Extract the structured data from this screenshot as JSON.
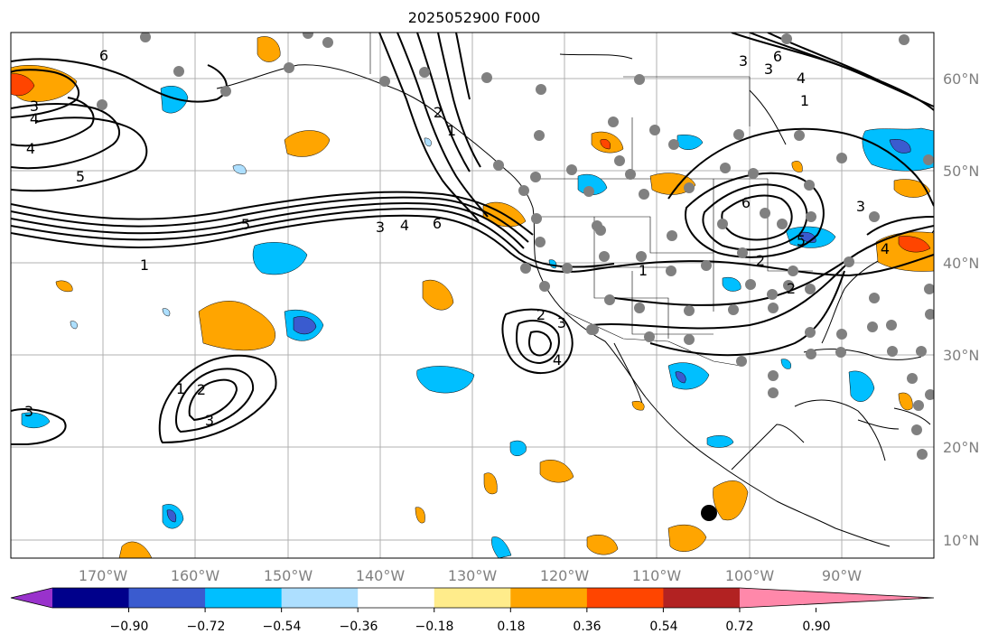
{
  "title": "2025052900 F000",
  "lon_labels": [
    "170°W",
    "160°W",
    "150°W",
    "140°W",
    "130°W",
    "120°W",
    "110°W",
    "100°W",
    "90°W"
  ],
  "lat_labels": [
    "60°N",
    "50°N",
    "40°N",
    "30°N",
    "20°N",
    "10°N"
  ],
  "colorbar": {
    "colors": [
      "#9932CC",
      "#00008B",
      "#3A5BCF",
      "#00BFFF",
      "#ADDFFF",
      "#FFFFFF",
      "#FFEC8B",
      "#FFA500",
      "#FF4500",
      "#B22222",
      "#FF88AA"
    ],
    "ticks": [
      "−0.90",
      "−0.72",
      "−0.54",
      "−0.36",
      "−0.18",
      "0.18",
      "0.36",
      "0.54",
      "0.72",
      "0.90"
    ]
  },
  "contour_labels": [
    "6",
    "3",
    "4",
    "4",
    "5",
    "5",
    "3",
    "4",
    "6",
    "1",
    "1",
    "2",
    "3",
    "3",
    "2",
    "3",
    "4",
    "1",
    "6",
    "3",
    "3",
    "4",
    "1",
    "6",
    "5",
    "2",
    "2",
    "4",
    "1",
    "2",
    "3"
  ],
  "map_extent": {
    "lon": [
      -180,
      -80
    ],
    "lat": [
      7,
      65
    ]
  },
  "marker": {
    "lon": -104,
    "lat": 13
  }
}
